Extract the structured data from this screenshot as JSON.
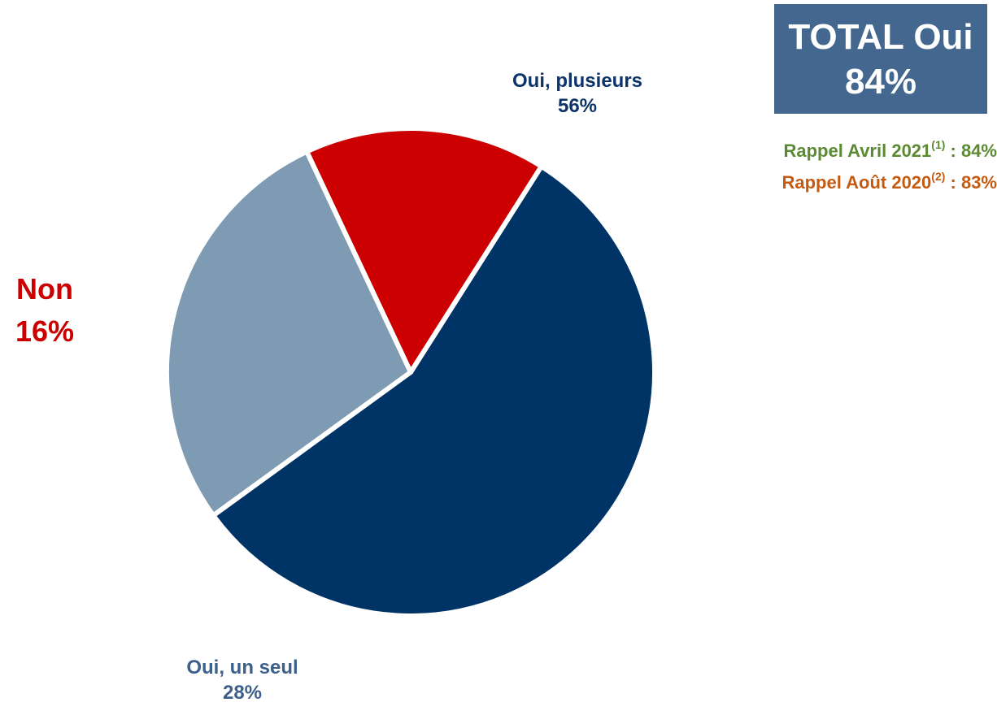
{
  "total_box": {
    "line1": "TOTAL Oui",
    "line2": "84%"
  },
  "rappels": [
    {
      "prefix": "Rappel Avril 2021",
      "note": "(1)",
      "suffix": " : 84%",
      "color": "#5b8a33"
    },
    {
      "prefix": "Rappel Août 2020",
      "note": "(2)",
      "suffix": " : 83%",
      "color": "#c55a11"
    }
  ],
  "chart_data": {
    "type": "pie",
    "start_angle_deg": -57.6,
    "direction": "clockwise",
    "slices": [
      {
        "name": "Oui, plusieurs",
        "label": "56%",
        "value": 56,
        "color": "#003366"
      },
      {
        "name": "Oui, un seul",
        "label": "28%",
        "value": 28,
        "color": "#7f9ab3"
      },
      {
        "name": "Non",
        "label": "16%",
        "value": 16,
        "color": "#cc0000"
      }
    ]
  }
}
